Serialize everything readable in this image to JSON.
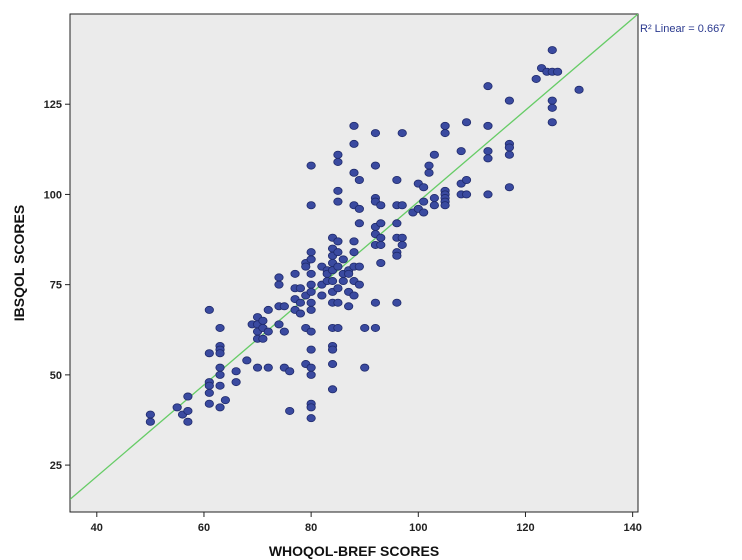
{
  "colors": {
    "plot_background": "#ebebeb",
    "point_fill": "#3a4aa0",
    "point_stroke": "#1f2a6b",
    "fit_line": "#66cc66",
    "axis": "#222222"
  },
  "chart_data": {
    "type": "scatter",
    "title": "",
    "xlabel": "WHOQOL-BREF SCORES",
    "ylabel": "IBSQOL SCORES",
    "xlim": [
      35,
      141
    ],
    "ylim": [
      12,
      150
    ],
    "x_ticks": [
      40,
      60,
      80,
      100,
      120,
      140
    ],
    "y_ticks": [
      25,
      50,
      75,
      100,
      125
    ],
    "grid": false,
    "fit_line": {
      "type": "linear",
      "label": "R² Linear = 0.667",
      "x": [
        35,
        141
      ],
      "y": [
        15.5,
        150
      ]
    },
    "points": [
      [
        50,
        39
      ],
      [
        50,
        37
      ],
      [
        55,
        41
      ],
      [
        56,
        39
      ],
      [
        57,
        44
      ],
      [
        57,
        40
      ],
      [
        57,
        37
      ],
      [
        61,
        56
      ],
      [
        61,
        48
      ],
      [
        61,
        47
      ],
      [
        61,
        45
      ],
      [
        61,
        42
      ],
      [
        61,
        68
      ],
      [
        63,
        63
      ],
      [
        63,
        58
      ],
      [
        63,
        57
      ],
      [
        63,
        56
      ],
      [
        63,
        52
      ],
      [
        63,
        50
      ],
      [
        63,
        47
      ],
      [
        63,
        41
      ],
      [
        64,
        43
      ],
      [
        66,
        51
      ],
      [
        66,
        48
      ],
      [
        68,
        54
      ],
      [
        69,
        64
      ],
      [
        70,
        64
      ],
      [
        70,
        66
      ],
      [
        70,
        62
      ],
      [
        70,
        60
      ],
      [
        70,
        52
      ],
      [
        71,
        65
      ],
      [
        71,
        63
      ],
      [
        71,
        60
      ],
      [
        72,
        52
      ],
      [
        72,
        62
      ],
      [
        72,
        68
      ],
      [
        74,
        77
      ],
      [
        74,
        75
      ],
      [
        74,
        69
      ],
      [
        74,
        64
      ],
      [
        75,
        69
      ],
      [
        75,
        62
      ],
      [
        75,
        52
      ],
      [
        76,
        51
      ],
      [
        76,
        40
      ],
      [
        77,
        74
      ],
      [
        77,
        71
      ],
      [
        77,
        68
      ],
      [
        77,
        78
      ],
      [
        78,
        74
      ],
      [
        78,
        67
      ],
      [
        78,
        70
      ],
      [
        79,
        81
      ],
      [
        79,
        72
      ],
      [
        79,
        63
      ],
      [
        79,
        53
      ],
      [
        79,
        80
      ],
      [
        80,
        108
      ],
      [
        80,
        97
      ],
      [
        80,
        84
      ],
      [
        80,
        82
      ],
      [
        80,
        78
      ],
      [
        80,
        75
      ],
      [
        80,
        73
      ],
      [
        80,
        70
      ],
      [
        80,
        68
      ],
      [
        80,
        62
      ],
      [
        80,
        57
      ],
      [
        80,
        52
      ],
      [
        80,
        50
      ],
      [
        80,
        42
      ],
      [
        80,
        41
      ],
      [
        80,
        38
      ],
      [
        82,
        80
      ],
      [
        82,
        75
      ],
      [
        82,
        72
      ],
      [
        83,
        79
      ],
      [
        83,
        76
      ],
      [
        83,
        78
      ],
      [
        84,
        88
      ],
      [
        84,
        85
      ],
      [
        84,
        83
      ],
      [
        84,
        81
      ],
      [
        84,
        79
      ],
      [
        84,
        76
      ],
      [
        84,
        73
      ],
      [
        84,
        70
      ],
      [
        84,
        63
      ],
      [
        84,
        58
      ],
      [
        84,
        57
      ],
      [
        84,
        53
      ],
      [
        84,
        46
      ],
      [
        85,
        111
      ],
      [
        85,
        109
      ],
      [
        85,
        101
      ],
      [
        85,
        98
      ],
      [
        85,
        87
      ],
      [
        85,
        84
      ],
      [
        85,
        80
      ],
      [
        85,
        74
      ],
      [
        85,
        70
      ],
      [
        85,
        63
      ],
      [
        86,
        82
      ],
      [
        86,
        78
      ],
      [
        86,
        76
      ],
      [
        87,
        79
      ],
      [
        87,
        73
      ],
      [
        87,
        69
      ],
      [
        87,
        78
      ],
      [
        88,
        119
      ],
      [
        88,
        114
      ],
      [
        88,
        106
      ],
      [
        88,
        97
      ],
      [
        88,
        87
      ],
      [
        88,
        84
      ],
      [
        88,
        80
      ],
      [
        88,
        76
      ],
      [
        88,
        72
      ],
      [
        89,
        104
      ],
      [
        89,
        92
      ],
      [
        89,
        96
      ],
      [
        89,
        80
      ],
      [
        89,
        75
      ],
      [
        90,
        63
      ],
      [
        90,
        52
      ],
      [
        92,
        117
      ],
      [
        92,
        108
      ],
      [
        92,
        99
      ],
      [
        92,
        98
      ],
      [
        92,
        91
      ],
      [
        92,
        89
      ],
      [
        92,
        86
      ],
      [
        92,
        70
      ],
      [
        92,
        63
      ],
      [
        93,
        97
      ],
      [
        93,
        92
      ],
      [
        93,
        88
      ],
      [
        93,
        86
      ],
      [
        93,
        81
      ],
      [
        96,
        104
      ],
      [
        96,
        97
      ],
      [
        96,
        92
      ],
      [
        96,
        88
      ],
      [
        96,
        84
      ],
      [
        96,
        83
      ],
      [
        96,
        70
      ],
      [
        97,
        117
      ],
      [
        97,
        97
      ],
      [
        97,
        88
      ],
      [
        97,
        86
      ],
      [
        99,
        95
      ],
      [
        100,
        96
      ],
      [
        100,
        103
      ],
      [
        101,
        95
      ],
      [
        101,
        98
      ],
      [
        101,
        102
      ],
      [
        102,
        108
      ],
      [
        102,
        106
      ],
      [
        103,
        111
      ],
      [
        103,
        97
      ],
      [
        103,
        99
      ],
      [
        105,
        119
      ],
      [
        105,
        117
      ],
      [
        105,
        101
      ],
      [
        105,
        100
      ],
      [
        105,
        99
      ],
      [
        105,
        98
      ],
      [
        105,
        97
      ],
      [
        108,
        112
      ],
      [
        108,
        103
      ],
      [
        108,
        100
      ],
      [
        109,
        120
      ],
      [
        109,
        104
      ],
      [
        109,
        100
      ],
      [
        113,
        130
      ],
      [
        113,
        119
      ],
      [
        113,
        112
      ],
      [
        113,
        110
      ],
      [
        113,
        100
      ],
      [
        117,
        126
      ],
      [
        117,
        114
      ],
      [
        117,
        113
      ],
      [
        117,
        111
      ],
      [
        117,
        102
      ],
      [
        122,
        132
      ],
      [
        123,
        135
      ],
      [
        124,
        134
      ],
      [
        125,
        140
      ],
      [
        125,
        134
      ],
      [
        125,
        126
      ],
      [
        125,
        124
      ],
      [
        125,
        120
      ],
      [
        126,
        134
      ],
      [
        130,
        129
      ]
    ]
  }
}
